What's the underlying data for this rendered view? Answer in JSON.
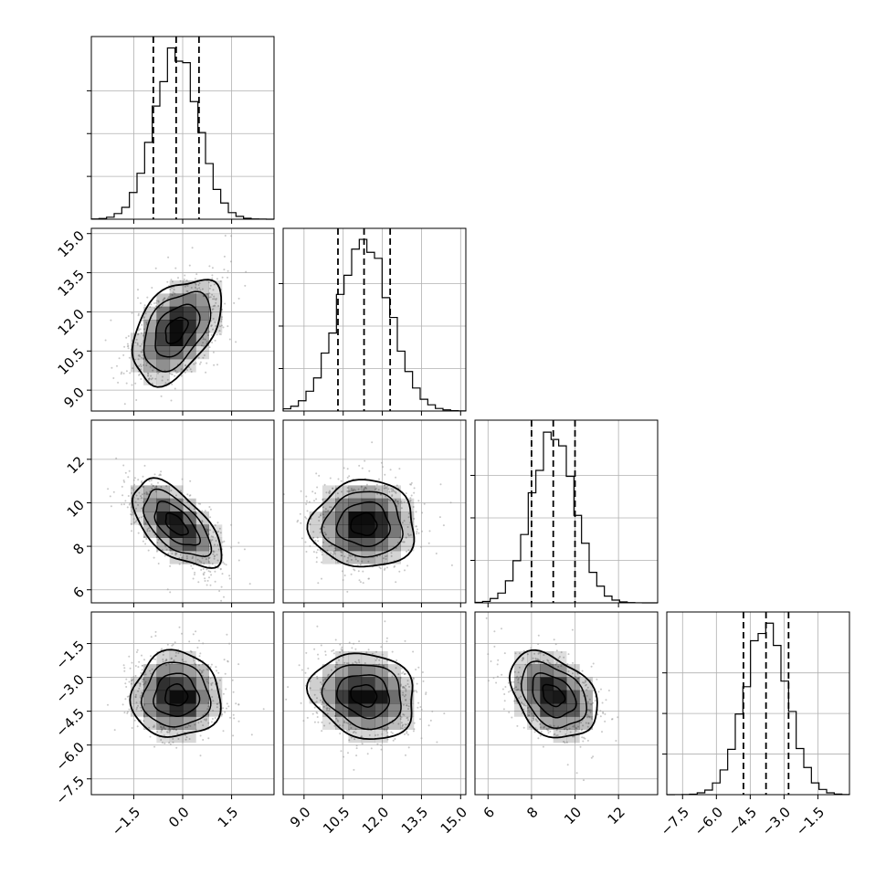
{
  "chart_data": {
    "type": "corner",
    "parameters": 4,
    "grid": true,
    "axes": [
      {
        "range": [
          -2.8,
          2.8
        ],
        "ticks": [
          -1.5,
          0.0,
          1.5
        ],
        "tick_labels": [
          "−1.5",
          "0.0",
          "1.5"
        ]
      },
      {
        "range": [
          8.2,
          15.2
        ],
        "ticks": [
          9.0,
          10.5,
          12.0,
          13.5,
          15.0
        ],
        "tick_labels": [
          "9.0",
          "10.5",
          "12.0",
          "13.5",
          "15.0"
        ]
      },
      {
        "range": [
          5.4,
          13.8
        ],
        "ticks": [
          6,
          8,
          10,
          12
        ],
        "tick_labels": [
          "6",
          "8",
          "10",
          "12"
        ]
      },
      {
        "range": [
          -8.2,
          -0.1
        ],
        "ticks": [
          -7.5,
          -6.0,
          -4.5,
          -3.0,
          -1.5
        ],
        "tick_labels": [
          "−7.5",
          "−6.0",
          "−4.5",
          "−3.0",
          "−1.5"
        ]
      }
    ],
    "marginals": [
      {
        "mean": -0.2,
        "sd": 0.68,
        "quantiles": [
          -0.9,
          -0.2,
          0.5
        ],
        "bins": 24,
        "ymax": 0.64,
        "yticks": [
          0.15,
          0.3,
          0.45
        ]
      },
      {
        "mean": 11.3,
        "sd": 1.0,
        "quantiles": [
          10.3,
          11.3,
          12.3
        ],
        "bins": 24,
        "ymax": 0.43,
        "yticks": [
          0.1,
          0.2,
          0.3
        ]
      },
      {
        "mean": 9.0,
        "sd": 1.0,
        "quantiles": [
          8.0,
          9.0,
          10.0
        ],
        "bins": 24,
        "ymax": 0.43,
        "yticks": [
          0.1,
          0.2,
          0.3
        ]
      },
      {
        "mean": -3.8,
        "sd": 0.95,
        "quantiles": [
          -4.8,
          -3.8,
          -2.8
        ],
        "bins": 24,
        "ymax": 0.45,
        "yticks": [
          0.1,
          0.2,
          0.3
        ]
      }
    ],
    "correlations": [
      {
        "pair": [
          0,
          1
        ],
        "rho": 0.45
      },
      {
        "pair": [
          0,
          2
        ],
        "rho": -0.6
      },
      {
        "pair": [
          1,
          2
        ],
        "rho": 0.0
      },
      {
        "pair": [
          0,
          3
        ],
        "rho": 0.0
      },
      {
        "pair": [
          1,
          3
        ],
        "rho": -0.15
      },
      {
        "pair": [
          2,
          3
        ],
        "rho": -0.35
      }
    ],
    "contour_levels_sigma": [
      0.5,
      1.0,
      1.5,
      2.0
    ],
    "colors": {
      "line": "#000000",
      "grid": "#b0b0b0",
      "points": "#9a9a9a",
      "frame": "#000000"
    }
  }
}
